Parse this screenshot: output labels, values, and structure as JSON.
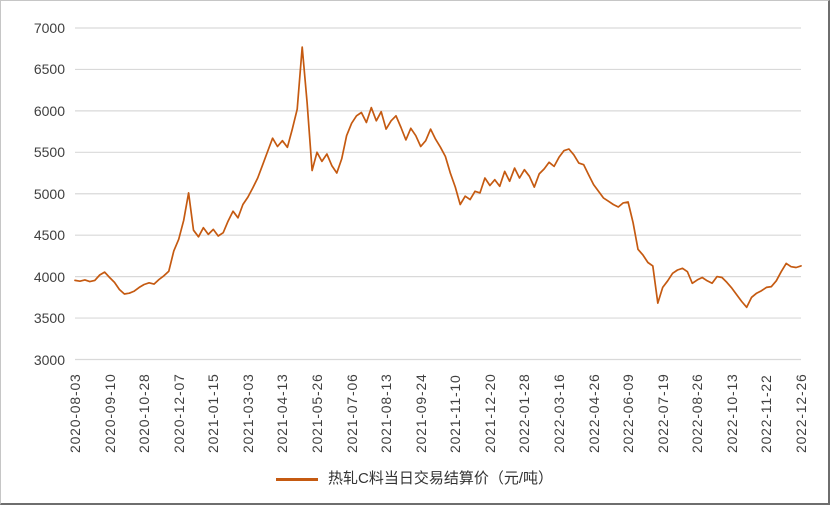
{
  "chart_data": {
    "type": "line",
    "title": "",
    "legend_position": "bottom",
    "grid": true,
    "y_axis": {
      "min": 3000,
      "max": 7000,
      "step": 500,
      "tick_labels": [
        "3000",
        "3500",
        "4000",
        "4500",
        "5000",
        "5500",
        "6000",
        "6500",
        "7000"
      ]
    },
    "x_tick_labels": [
      "2020-08-03",
      "2020-09-10",
      "2020-10-28",
      "2020-12-07",
      "2021-01-15",
      "2021-03-03",
      "2021-04-13",
      "2021-05-26",
      "2021-07-06",
      "2021-08-13",
      "2021-09-24",
      "2021-11-10",
      "2021-12-20",
      "2022-01-28",
      "2022-03-16",
      "2022-04-26",
      "2022-06-09",
      "2022-07-19",
      "2022-08-26",
      "2022-10-13",
      "2022-11-22",
      "2022-12-26"
    ],
    "points_per_tick_interval": 7,
    "series": [
      {
        "name": "热轧C料当日交易结算价（元/吨）",
        "color": "#C55A11",
        "values": [
          3955,
          3945,
          3960,
          3940,
          3955,
          4020,
          4055,
          3990,
          3930,
          3845,
          3790,
          3800,
          3825,
          3870,
          3905,
          3925,
          3910,
          3965,
          4010,
          4065,
          4310,
          4450,
          4680,
          5010,
          4560,
          4480,
          4590,
          4510,
          4570,
          4490,
          4530,
          4670,
          4790,
          4710,
          4870,
          4960,
          5070,
          5190,
          5350,
          5510,
          5670,
          5570,
          5640,
          5560,
          5780,
          6020,
          6770,
          6100,
          5280,
          5500,
          5390,
          5480,
          5340,
          5250,
          5420,
          5700,
          5850,
          5940,
          5980,
          5860,
          6040,
          5880,
          5990,
          5780,
          5880,
          5940,
          5800,
          5650,
          5790,
          5700,
          5570,
          5640,
          5780,
          5660,
          5560,
          5450,
          5250,
          5080,
          4870,
          4970,
          4930,
          5030,
          5010,
          5190,
          5100,
          5170,
          5090,
          5270,
          5150,
          5310,
          5190,
          5290,
          5210,
          5080,
          5240,
          5300,
          5380,
          5330,
          5440,
          5520,
          5540,
          5470,
          5370,
          5350,
          5230,
          5110,
          5030,
          4950,
          4910,
          4870,
          4840,
          4890,
          4900,
          4650,
          4330,
          4260,
          4170,
          4130,
          3680,
          3870,
          3950,
          4040,
          4080,
          4100,
          4060,
          3920,
          3960,
          3990,
          3950,
          3920,
          4000,
          3990,
          3930,
          3860,
          3780,
          3700,
          3630,
          3750,
          3800,
          3830,
          3870,
          3880,
          3950,
          4060,
          4160,
          4120,
          4110,
          4130
        ]
      }
    ]
  },
  "legend": {
    "label": "热轧C料当日交易结算价（元/吨）"
  },
  "colors": {
    "line": "#C55A11",
    "gridline": "#D9D9D9",
    "axis_label": "#404040",
    "legend_text": "#333333",
    "background": "#FFFFFF"
  }
}
